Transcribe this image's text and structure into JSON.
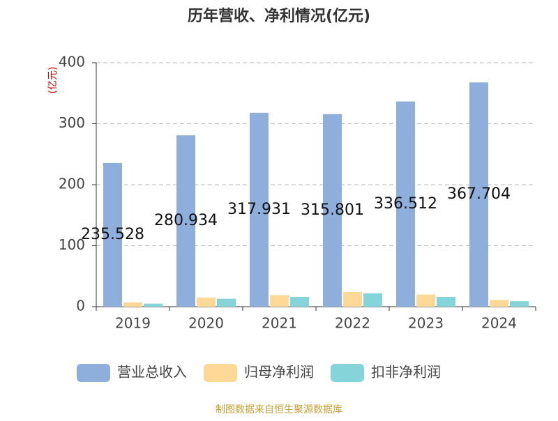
{
  "chart_data": {
    "type": "bar",
    "title": "历年营收、净利情况(亿元)",
    "y_label": "(亿元)",
    "source": "制图数据来自恒生聚源数据库",
    "categories": [
      "2019",
      "2020",
      "2021",
      "2022",
      "2023",
      "2024"
    ],
    "series": [
      {
        "name": "营业总收入",
        "color": "#8eaedc",
        "values": [
          235.528,
          280.934,
          317.931,
          315.801,
          336.512,
          367.704
        ],
        "show_labels": true
      },
      {
        "name": "归母净利润",
        "color": "#fdd896",
        "values": [
          7,
          15,
          19,
          24,
          20,
          11
        ]
      },
      {
        "name": "扣非净利润",
        "color": "#85d4d9",
        "values": [
          5,
          13,
          16,
          22,
          16,
          9
        ]
      }
    ],
    "ylim": [
      0,
      400
    ],
    "yticks": [
      0,
      100,
      200,
      300,
      400
    ],
    "grid": true
  }
}
